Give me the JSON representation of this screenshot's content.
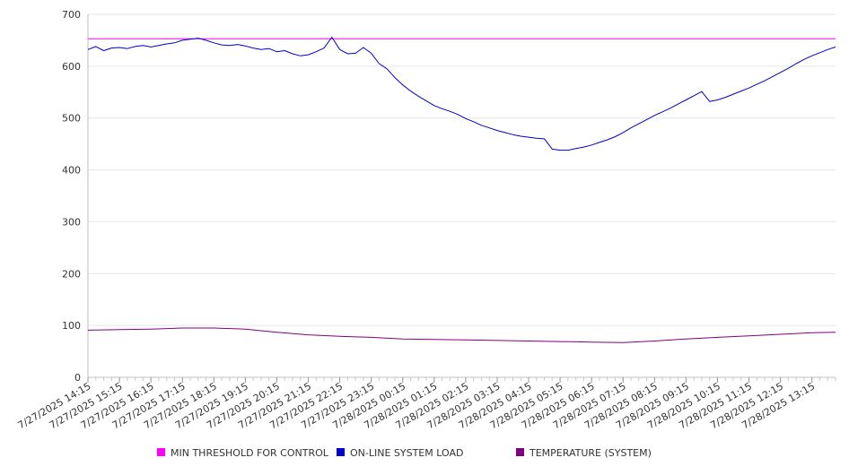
{
  "chart_data": {
    "type": "line",
    "title": "",
    "xlabel": "",
    "ylabel": "",
    "ylim": [
      0,
      700
    ],
    "yticks": [
      0,
      100,
      200,
      300,
      400,
      500,
      600,
      700
    ],
    "grid": "horizontal",
    "legend_placement": "bottom",
    "x_tick_labels": [
      "7/27/2025 14:15",
      "7/27/2025 15:15",
      "7/27/2025 16:15",
      "7/27/2025 17:15",
      "7/27/2025 18:15",
      "7/27/2025 19:15",
      "7/27/2025 20:15",
      "7/27/2025 21:15",
      "7/27/2025 22:15",
      "7/27/2025 23:15",
      "7/28/2025 00:15",
      "7/28/2025 01:15",
      "7/28/2025 02:15",
      "7/28/2025 03:15",
      "7/28/2025 04:15",
      "7/28/2025 05:15",
      "7/28/2025 06:15",
      "7/28/2025 07:15",
      "7/28/2025 08:15",
      "7/28/2025 09:15",
      "7/28/2025 10:15",
      "7/28/2025 11:15",
      "7/28/2025 12:15",
      "7/28/2025 13:15"
    ],
    "x_start": "7/27/2025 14:15",
    "x_end": "7/28/2025 14:00",
    "series": [
      {
        "name": "MIN THRESHOLD FOR CONTROL",
        "color": "#ff00ff",
        "points": [
          [
            "7/27/2025 14:15",
            653
          ],
          [
            "7/28/2025 14:00",
            653
          ]
        ]
      },
      {
        "name": "ON-LINE SYSTEM LOAD",
        "color": "#0000cc",
        "points": [
          [
            "7/27/2025 14:15",
            632
          ],
          [
            "7/27/2025 14:30",
            638
          ],
          [
            "7/27/2025 14:45",
            630
          ],
          [
            "7/27/2025 15:00",
            635
          ],
          [
            "7/27/2025 15:15",
            636
          ],
          [
            "7/27/2025 15:30",
            634
          ],
          [
            "7/27/2025 15:45",
            638
          ],
          [
            "7/27/2025 16:00",
            640
          ],
          [
            "7/27/2025 16:15",
            637
          ],
          [
            "7/27/2025 16:30",
            640
          ],
          [
            "7/27/2025 16:45",
            643
          ],
          [
            "7/27/2025 17:00",
            645
          ],
          [
            "7/27/2025 17:15",
            650
          ],
          [
            "7/27/2025 17:30",
            652
          ],
          [
            "7/27/2025 17:45",
            654
          ],
          [
            "7/27/2025 18:00",
            650
          ],
          [
            "7/27/2025 18:15",
            645
          ],
          [
            "7/27/2025 18:30",
            641
          ],
          [
            "7/27/2025 18:45",
            640
          ],
          [
            "7/27/2025 19:00",
            642
          ],
          [
            "7/27/2025 19:15",
            639
          ],
          [
            "7/27/2025 19:30",
            635
          ],
          [
            "7/27/2025 19:45",
            632
          ],
          [
            "7/27/2025 20:00",
            634
          ],
          [
            "7/27/2025 20:15",
            628
          ],
          [
            "7/27/2025 20:30",
            630
          ],
          [
            "7/27/2025 20:45",
            624
          ],
          [
            "7/27/2025 21:00",
            620
          ],
          [
            "7/27/2025 21:15",
            622
          ],
          [
            "7/27/2025 21:30",
            628
          ],
          [
            "7/27/2025 21:45",
            635
          ],
          [
            "7/27/2025 22:00",
            656
          ],
          [
            "7/27/2025 22:15",
            632
          ],
          [
            "7/27/2025 22:30",
            624
          ],
          [
            "7/27/2025 22:45",
            625
          ],
          [
            "7/27/2025 23:00",
            636
          ],
          [
            "7/27/2025 23:15",
            625
          ],
          [
            "7/27/2025 23:30",
            605
          ],
          [
            "7/27/2025 23:45",
            595
          ],
          [
            "7/28/2025 00:00",
            578
          ],
          [
            "7/28/2025 00:15",
            564
          ],
          [
            "7/28/2025 00:30",
            552
          ],
          [
            "7/28/2025 00:45",
            542
          ],
          [
            "7/28/2025 01:00",
            533
          ],
          [
            "7/28/2025 01:15",
            524
          ],
          [
            "7/28/2025 01:30",
            518
          ],
          [
            "7/28/2025 01:45",
            513
          ],
          [
            "7/28/2025 02:00",
            507
          ],
          [
            "7/28/2025 02:15",
            499
          ],
          [
            "7/28/2025 02:30",
            493
          ],
          [
            "7/28/2025 02:45",
            486
          ],
          [
            "7/28/2025 03:00",
            481
          ],
          [
            "7/28/2025 03:15",
            476
          ],
          [
            "7/28/2025 03:30",
            472
          ],
          [
            "7/28/2025 03:45",
            468
          ],
          [
            "7/28/2025 04:00",
            465
          ],
          [
            "7/28/2025 04:15",
            463
          ],
          [
            "7/28/2025 04:30",
            461
          ],
          [
            "7/28/2025 04:45",
            460
          ],
          [
            "7/28/2025 05:00",
            440
          ],
          [
            "7/28/2025 05:15",
            438
          ],
          [
            "7/28/2025 05:30",
            438
          ],
          [
            "7/28/2025 05:45",
            441
          ],
          [
            "7/28/2025 06:00",
            444
          ],
          [
            "7/28/2025 06:15",
            448
          ],
          [
            "7/28/2025 06:30",
            453
          ],
          [
            "7/28/2025 06:45",
            458
          ],
          [
            "7/28/2025 07:00",
            464
          ],
          [
            "7/28/2025 07:15",
            472
          ],
          [
            "7/28/2025 07:30",
            481
          ],
          [
            "7/28/2025 07:45",
            489
          ],
          [
            "7/28/2025 08:00",
            497
          ],
          [
            "7/28/2025 08:15",
            505
          ],
          [
            "7/28/2025 08:30",
            512
          ],
          [
            "7/28/2025 08:45",
            519
          ],
          [
            "7/28/2025 09:00",
            527
          ],
          [
            "7/28/2025 09:15",
            535
          ],
          [
            "7/28/2025 09:30",
            543
          ],
          [
            "7/28/2025 09:45",
            551
          ],
          [
            "7/28/2025 10:00",
            532
          ],
          [
            "7/28/2025 10:15",
            535
          ],
          [
            "7/28/2025 10:30",
            540
          ],
          [
            "7/28/2025 10:45",
            546
          ],
          [
            "7/28/2025 11:00",
            552
          ],
          [
            "7/28/2025 11:15",
            558
          ],
          [
            "7/28/2025 11:30",
            565
          ],
          [
            "7/28/2025 11:45",
            572
          ],
          [
            "7/28/2025 12:00",
            580
          ],
          [
            "7/28/2025 12:15",
            588
          ],
          [
            "7/28/2025 12:30",
            596
          ],
          [
            "7/28/2025 12:45",
            605
          ],
          [
            "7/28/2025 13:00",
            613
          ],
          [
            "7/28/2025 13:15",
            620
          ],
          [
            "7/28/2025 13:30",
            626
          ],
          [
            "7/28/2025 13:45",
            632
          ],
          [
            "7/28/2025 14:00",
            637
          ]
        ]
      },
      {
        "name": "TEMPERATURE (SYSTEM)",
        "color": "#800080",
        "points": [
          [
            "7/27/2025 14:15",
            91
          ],
          [
            "7/27/2025 15:15",
            92
          ],
          [
            "7/27/2025 16:15",
            93
          ],
          [
            "7/27/2025 17:15",
            95
          ],
          [
            "7/27/2025 18:15",
            95
          ],
          [
            "7/27/2025 19:15",
            93
          ],
          [
            "7/27/2025 20:15",
            87
          ],
          [
            "7/27/2025 21:15",
            82
          ],
          [
            "7/27/2025 22:15",
            79
          ],
          [
            "7/27/2025 23:15",
            77
          ],
          [
            "7/28/2025 00:15",
            74
          ],
          [
            "7/28/2025 01:15",
            73
          ],
          [
            "7/28/2025 02:15",
            72
          ],
          [
            "7/28/2025 03:15",
            71
          ],
          [
            "7/28/2025 04:15",
            70
          ],
          [
            "7/28/2025 05:15",
            69
          ],
          [
            "7/28/2025 06:15",
            68
          ],
          [
            "7/28/2025 07:15",
            67
          ],
          [
            "7/28/2025 08:15",
            70
          ],
          [
            "7/28/2025 09:15",
            74
          ],
          [
            "7/28/2025 10:15",
            77
          ],
          [
            "7/28/2025 11:15",
            80
          ],
          [
            "7/28/2025 12:15",
            83
          ],
          [
            "7/28/2025 13:15",
            86
          ],
          [
            "7/28/2025 14:00",
            87
          ]
        ]
      }
    ]
  }
}
